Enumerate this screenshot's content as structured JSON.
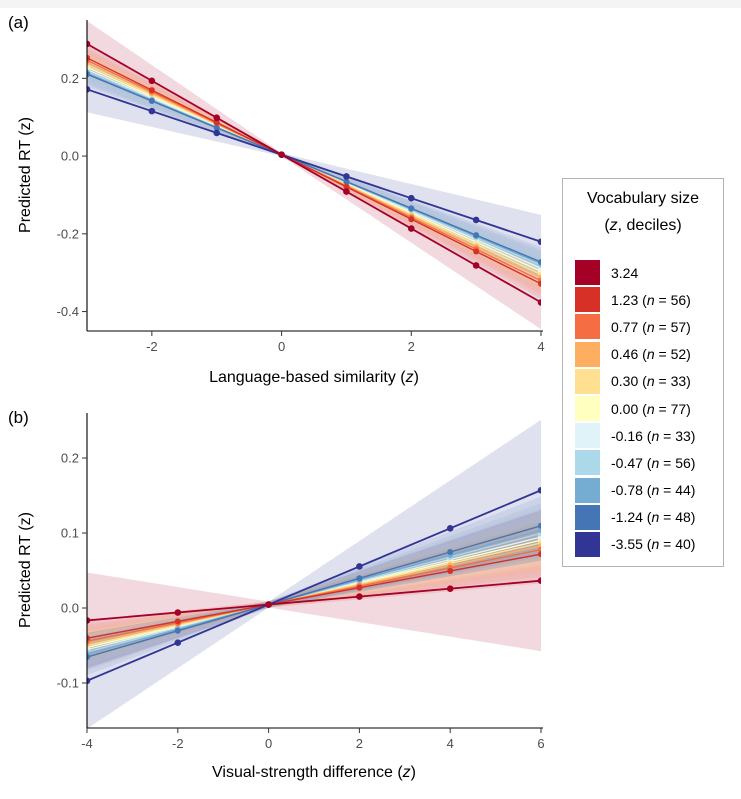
{
  "chart_data": [
    {
      "type": "line",
      "panel_label": "(a)",
      "xlabel_text": "Language-based similarity (",
      "xlabel_var": "z",
      "xlabel_close": ")",
      "ylabel": "Predicted RT (z)",
      "xlim": [
        -3,
        4
      ],
      "ylim": [
        -0.45,
        0.35
      ],
      "xticks": [
        -2,
        0,
        2,
        4
      ],
      "xtick_labels": [
        "-2",
        "0",
        "2",
        "4"
      ],
      "yticks": [
        -0.4,
        -0.2,
        0.0,
        0.2
      ],
      "ytick_labels": [
        "-0.4",
        "-0.2",
        "0.0",
        "0.2"
      ],
      "x": [
        -3,
        -2,
        -1,
        0,
        1,
        2,
        3,
        4
      ],
      "series": [
        {
          "name": "3.24",
          "slope": -0.095,
          "intercept": 0.0036,
          "ci_half": [
            0.055,
            0.065
          ]
        },
        {
          "name": "1.23",
          "slope": -0.083,
          "intercept": 0.0036,
          "ci_half": [
            0.028,
            0.035
          ]
        },
        {
          "name": "0.77",
          "slope": -0.081,
          "intercept": 0.0036,
          "ci_half": [
            0.026,
            0.032
          ]
        },
        {
          "name": "0.46",
          "slope": -0.079,
          "intercept": 0.0036,
          "ci_half": [
            0.025,
            0.031
          ]
        },
        {
          "name": "0.30",
          "slope": -0.077,
          "intercept": 0.0036,
          "ci_half": [
            0.025,
            0.03
          ]
        },
        {
          "name": "0.00",
          "slope": -0.075,
          "intercept": 0.0036,
          "ci_half": [
            0.025,
            0.03
          ]
        },
        {
          "name": "-0.16",
          "slope": -0.073,
          "intercept": 0.0036,
          "ci_half": [
            0.025,
            0.03
          ]
        },
        {
          "name": "-0.47",
          "slope": -0.071,
          "intercept": 0.0036,
          "ci_half": [
            0.025,
            0.031
          ]
        },
        {
          "name": "-0.78",
          "slope": -0.07,
          "intercept": 0.0036,
          "ci_half": [
            0.026,
            0.032
          ]
        },
        {
          "name": "-1.24",
          "slope": -0.069,
          "intercept": 0.0036,
          "ci_half": [
            0.028,
            0.035
          ]
        },
        {
          "name": "-3.55",
          "slope": -0.056,
          "intercept": 0.0036,
          "ci_half": [
            0.055,
            0.065
          ]
        }
      ]
    },
    {
      "type": "line",
      "panel_label": "(b)",
      "xlabel_text": "Visual-strength difference (",
      "xlabel_var": "z",
      "xlabel_close": ")",
      "ylabel": "Predicted RT (z)",
      "xlim": [
        -4,
        6
      ],
      "ylim": [
        -0.16,
        0.26
      ],
      "xticks": [
        -4,
        -2,
        0,
        2,
        4,
        6
      ],
      "xtick_labels": [
        "-4",
        "-2",
        "0",
        "2",
        "4",
        "6"
      ],
      "yticks": [
        -0.1,
        0.0,
        0.1,
        0.2
      ],
      "ytick_labels": [
        "-0.1",
        "0.0",
        "0.1",
        "0.2"
      ],
      "x": [
        -4,
        -2,
        0,
        2,
        4,
        6
      ],
      "series": [
        {
          "name": "3.24",
          "slope": 0.0053,
          "intercept": 0.0046,
          "ci_half": [
            0.06,
            0.09
          ]
        },
        {
          "name": "1.23",
          "slope": 0.0112,
          "intercept": 0.0046,
          "ci_half": [
            0.02,
            0.035
          ]
        },
        {
          "name": "0.77",
          "slope": 0.0122,
          "intercept": 0.0046,
          "ci_half": [
            0.018,
            0.032
          ]
        },
        {
          "name": "0.46",
          "slope": 0.013,
          "intercept": 0.0046,
          "ci_half": [
            0.017,
            0.03
          ]
        },
        {
          "name": "0.30",
          "slope": 0.0137,
          "intercept": 0.0046,
          "ci_half": [
            0.017,
            0.029
          ]
        },
        {
          "name": "0.00",
          "slope": 0.0143,
          "intercept": 0.0046,
          "ci_half": [
            0.017,
            0.029
          ]
        },
        {
          "name": "-0.16",
          "slope": 0.015,
          "intercept": 0.0046,
          "ci_half": [
            0.017,
            0.029
          ]
        },
        {
          "name": "-0.47",
          "slope": 0.0158,
          "intercept": 0.0046,
          "ci_half": [
            0.017,
            0.03
          ]
        },
        {
          "name": "-0.78",
          "slope": 0.0165,
          "intercept": 0.0046,
          "ci_half": [
            0.018,
            0.032
          ]
        },
        {
          "name": "-1.24",
          "slope": 0.0175,
          "intercept": 0.0046,
          "ci_half": [
            0.02,
            0.035
          ]
        },
        {
          "name": "-3.55",
          "slope": 0.0254,
          "intercept": 0.0046,
          "ci_half": [
            0.06,
            0.09
          ]
        }
      ]
    }
  ],
  "legend": {
    "title_line1": "Vocabulary size",
    "title_line2_var": "z",
    "title_line2_rest": ", deciles)",
    "title_line2_open": "(",
    "items": [
      {
        "value": "3.24",
        "n": "",
        "color": "#a50026"
      },
      {
        "value": "1.23",
        "n": "56",
        "color": "#d73027"
      },
      {
        "value": "0.77",
        "n": "57",
        "color": "#f46d43"
      },
      {
        "value": "0.46",
        "n": "52",
        "color": "#fdae61"
      },
      {
        "value": "0.30",
        "n": "33",
        "color": "#fee090"
      },
      {
        "value": "0.00",
        "n": "77",
        "color": "#ffffbf"
      },
      {
        "value": "-0.16",
        "n": "33",
        "color": "#e0f3f8"
      },
      {
        "value": "-0.47",
        "n": "56",
        "color": "#abd9e9"
      },
      {
        "value": "-0.78",
        "n": "44",
        "color": "#74add1"
      },
      {
        "value": "-1.24",
        "n": "48",
        "color": "#4575b4"
      },
      {
        "value": "-3.55",
        "n": "40",
        "color": "#313695"
      }
    ]
  }
}
